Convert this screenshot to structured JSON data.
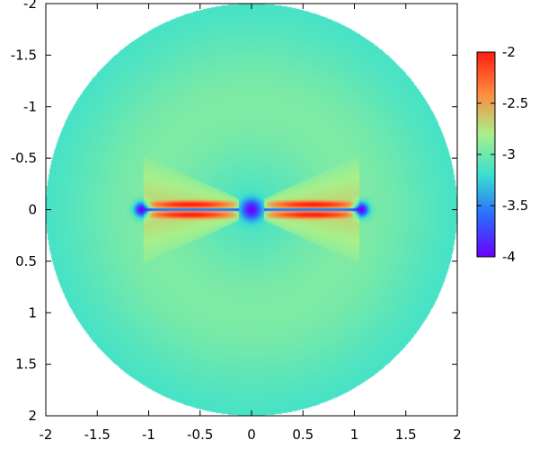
{
  "chart_data": {
    "type": "heatmap",
    "title": "",
    "xlabel": "",
    "ylabel": "",
    "xlim": [
      -2.0,
      2.0
    ],
    "ylim": [
      -2.0,
      2.0
    ],
    "y_axis_inverted": true,
    "x_ticks": [
      -2,
      -1.5,
      -1,
      -0.5,
      0,
      0.5,
      1,
      1.5,
      2
    ],
    "x_tick_labels": [
      "-2",
      "-1.5",
      "-1",
      "-0.5",
      "0",
      "0.5",
      "1",
      "1.5",
      "2"
    ],
    "y_ticks": [
      -2,
      -1.5,
      -1,
      -0.5,
      0,
      0.5,
      1,
      1.5,
      2
    ],
    "y_tick_labels": [
      "-2",
      "-1.5",
      "-1",
      "-0.5",
      "0",
      "0.5",
      "1",
      "1.5",
      "2"
    ],
    "domain": {
      "shape": "disc",
      "center": [
        0,
        0
      ],
      "radius": 2.0
    },
    "background_value": -3.2,
    "features": [
      {
        "name": "upper-lobes",
        "description": "red bands above the mid-plane",
        "peak_value": -2.0,
        "x_range": [
          -1.0,
          1.0
        ],
        "y_range": [
          -0.1,
          -0.02
        ]
      },
      {
        "name": "lower-lobes",
        "description": "red bands below the mid-plane",
        "peak_value": -2.0,
        "x_range": [
          -1.0,
          1.0
        ],
        "y_range": [
          0.02,
          0.1
        ]
      },
      {
        "name": "minima",
        "description": "deep blue spots at the inner and outer edges of the disc",
        "x": [
          -1.07,
          0,
          1.07
        ],
        "y": [
          0,
          0,
          0
        ],
        "value": -4.0
      }
    ],
    "colorbar": {
      "min": -4,
      "max": -2,
      "ticks": [
        -2,
        -2.5,
        -3,
        -3.5,
        -4
      ],
      "tick_labels": [
        "-2",
        "-2.5",
        "-3",
        "-3.5",
        "-4"
      ],
      "colors": [
        "#6a00ff",
        "#2b6bff",
        "#38e0d0",
        "#a8f08a",
        "#ff8a3d",
        "#ff1e10"
      ]
    },
    "grid": false,
    "legend": "colorbar-right"
  }
}
